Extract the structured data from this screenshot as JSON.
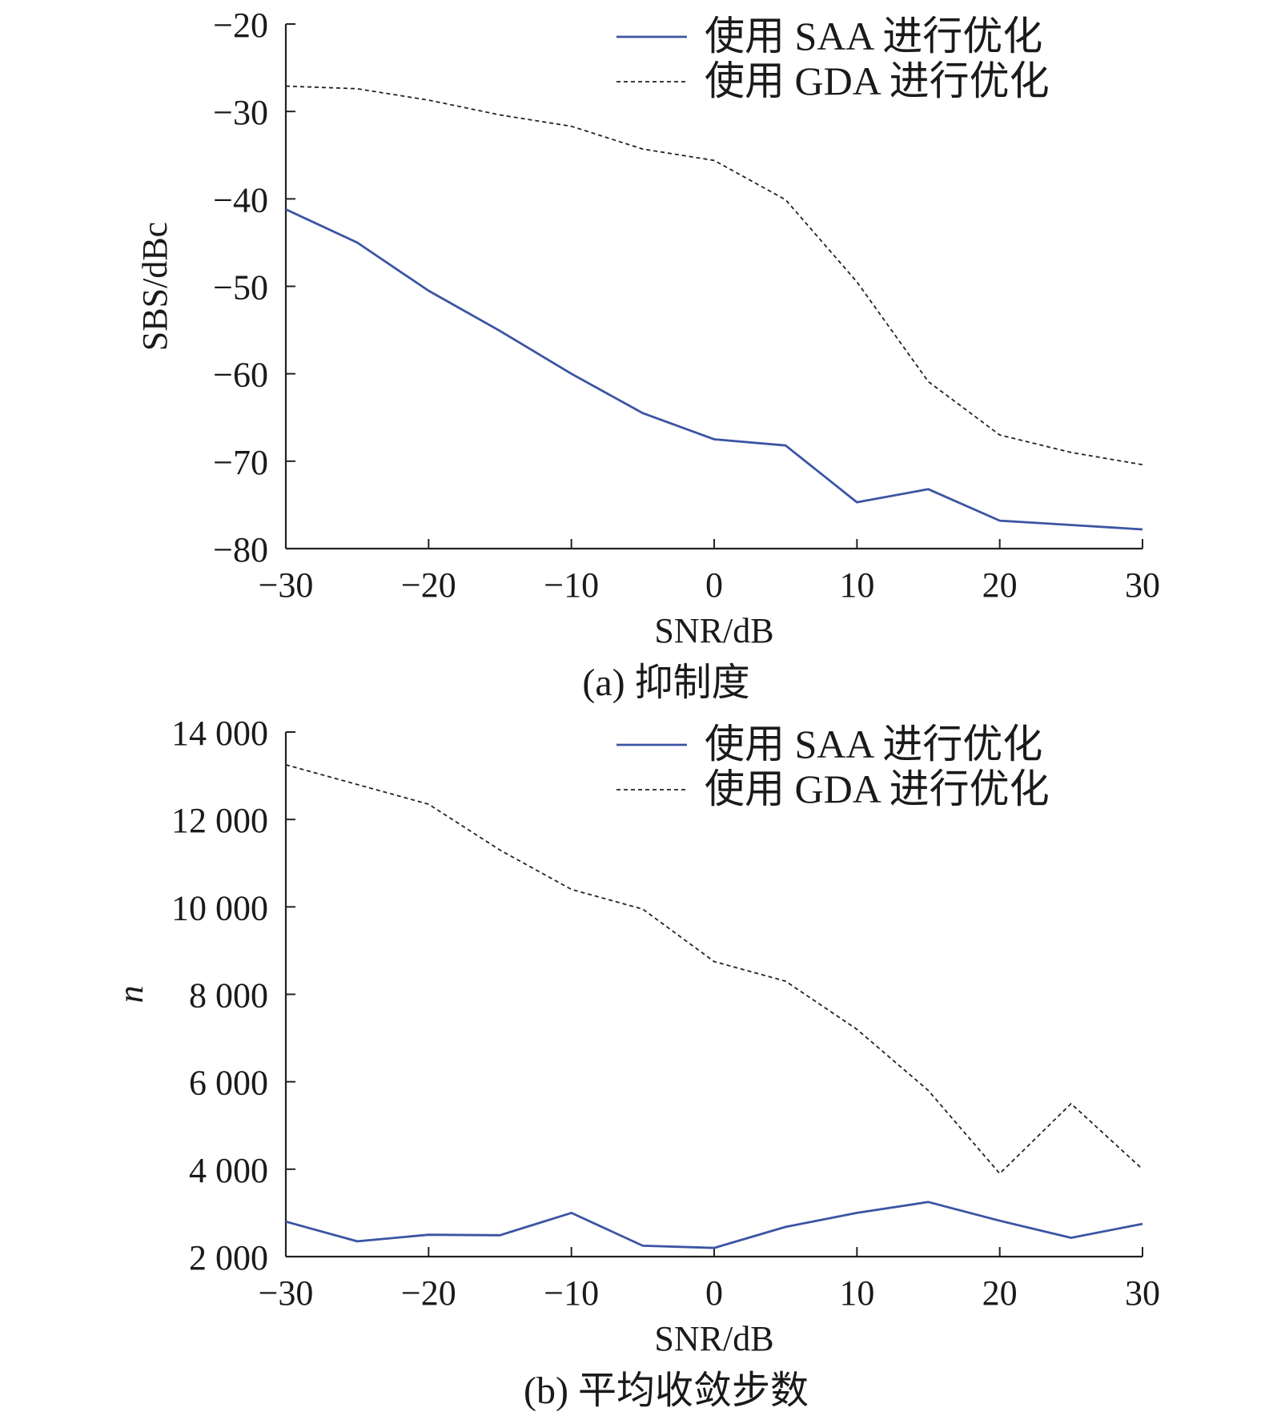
{
  "colors": {
    "series_solid": "#3b55a3",
    "series_dashed": "#222222",
    "axis": "#222222"
  },
  "chart_data": [
    {
      "type": "line",
      "caption": "(a) 抑制度",
      "xlabel": "SNR/dB",
      "ylabel": "SBS/dBc",
      "xlim": [
        -30,
        30
      ],
      "ylim": [
        -80,
        -20
      ],
      "xticks": [
        -30,
        -20,
        -10,
        0,
        10,
        20,
        30
      ],
      "xtick_labels": [
        "−30",
        "−20",
        "−10",
        "0",
        "10",
        "20",
        "30"
      ],
      "yticks": [
        -20,
        -30,
        -40,
        -50,
        -60,
        -70,
        -80
      ],
      "ytick_labels": [
        "−20",
        "−30",
        "−40",
        "−50",
        "−60",
        "−70",
        "−80"
      ],
      "legend_position": "top-right",
      "grid": false,
      "x": [
        -30,
        -25,
        -20,
        -15,
        -10,
        -5,
        0,
        5,
        10,
        15,
        20,
        25,
        30
      ],
      "series": [
        {
          "name": "使用 SAA 进行优化",
          "style": "solid",
          "values": [
            -41.2,
            -45.0,
            -50.5,
            -55.1,
            -60.0,
            -64.5,
            -67.5,
            -68.2,
            -74.7,
            -73.2,
            -76.8,
            -77.3,
            -77.8
          ]
        },
        {
          "name": "使用 GDA 进行优化",
          "style": "dashed",
          "values": [
            -27.1,
            -27.4,
            -28.7,
            -30.4,
            -31.7,
            -34.3,
            -35.6,
            -40.1,
            -49.5,
            -60.9,
            -67.0,
            -69.0,
            -70.4
          ]
        }
      ]
    },
    {
      "type": "line",
      "caption": "(b) 平均收敛步数",
      "xlabel": "SNR/dB",
      "ylabel": "n",
      "xlim": [
        -30,
        30
      ],
      "ylim": [
        2000,
        14000
      ],
      "xticks": [
        -30,
        -20,
        -10,
        0,
        10,
        20,
        30
      ],
      "xtick_labels": [
        "−30",
        "−20",
        "−10",
        "0",
        "10",
        "20",
        "30"
      ],
      "yticks": [
        14000,
        12000,
        10000,
        8000,
        6000,
        4000,
        2000
      ],
      "ytick_labels": [
        "14 000",
        "12 000",
        "10 000",
        "8 000",
        "6 000",
        "4 000",
        "2 000"
      ],
      "legend_position": "top-right",
      "grid": false,
      "x": [
        -30,
        -25,
        -20,
        -15,
        -10,
        -5,
        0,
        5,
        10,
        15,
        20,
        25,
        30
      ],
      "series": [
        {
          "name": "使用 SAA 进行优化",
          "style": "solid",
          "values": [
            2800,
            2350,
            2500,
            2490,
            3000,
            2250,
            2200,
            2680,
            3000,
            3250,
            2820,
            2430,
            2750
          ]
        },
        {
          "name": "使用 GDA 进行优化",
          "style": "dashed",
          "values": [
            13250,
            12800,
            12350,
            11300,
            10400,
            9950,
            8750,
            8300,
            7200,
            5800,
            3900,
            5500,
            4000
          ]
        }
      ]
    }
  ]
}
